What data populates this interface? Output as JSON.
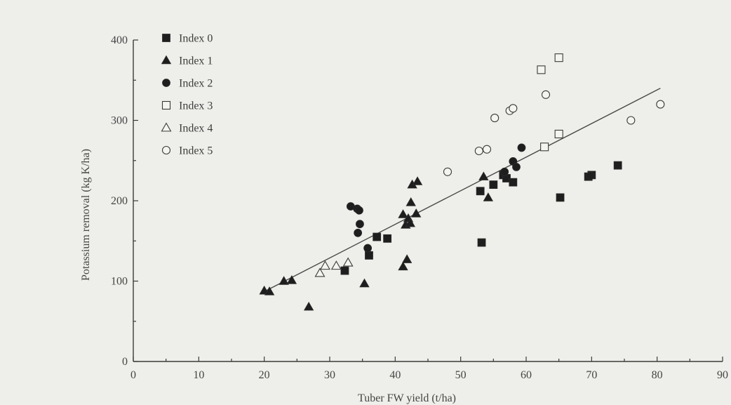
{
  "chart_data": {
    "type": "scatter",
    "xlabel": "Tuber FW yield (t/ha)",
    "ylabel": "Potassium removal (kg K/ha)",
    "xlim": [
      0,
      90
    ],
    "ylim": [
      0,
      400
    ],
    "xticks": [
      0,
      10,
      20,
      30,
      40,
      50,
      60,
      70,
      80,
      90
    ],
    "yticks": [
      0,
      100,
      200,
      300,
      400
    ],
    "legend_position": "top-left",
    "trendline": {
      "x": [
        20,
        80.5
      ],
      "y": [
        87,
        340
      ]
    },
    "series": [
      {
        "name": "Index 0",
        "marker": "square-filled",
        "points": [
          [
            32.3,
            113
          ],
          [
            36,
            132
          ],
          [
            37.2,
            155
          ],
          [
            38.8,
            153
          ],
          [
            53,
            212
          ],
          [
            53.2,
            148
          ],
          [
            55,
            220
          ],
          [
            56.5,
            232
          ],
          [
            57,
            228
          ],
          [
            58,
            223
          ],
          [
            65.2,
            204
          ],
          [
            69.5,
            230
          ],
          [
            70,
            232
          ],
          [
            74,
            244
          ]
        ]
      },
      {
        "name": "Index 1",
        "marker": "triangle-filled",
        "points": [
          [
            20,
            88
          ],
          [
            20.8,
            87
          ],
          [
            23,
            100
          ],
          [
            24.2,
            101
          ],
          [
            26.8,
            68
          ],
          [
            35.3,
            97
          ],
          [
            41.2,
            118
          ],
          [
            41.8,
            127
          ],
          [
            41.2,
            183
          ],
          [
            41.6,
            170
          ],
          [
            42,
            178
          ],
          [
            42.3,
            172
          ],
          [
            42.4,
            198
          ],
          [
            42.6,
            220
          ],
          [
            43.2,
            184
          ],
          [
            43.4,
            224
          ],
          [
            53.5,
            230
          ],
          [
            54.2,
            204
          ]
        ]
      },
      {
        "name": "Index 2",
        "marker": "circle-filled",
        "points": [
          [
            33.2,
            193
          ],
          [
            34.2,
            190
          ],
          [
            34.5,
            188
          ],
          [
            34.3,
            160
          ],
          [
            34.6,
            171
          ],
          [
            35.8,
            141
          ],
          [
            56.7,
            236
          ],
          [
            58,
            249
          ],
          [
            58.5,
            242
          ],
          [
            59.3,
            266
          ],
          [
            69.8,
            231
          ]
        ]
      },
      {
        "name": "Index 3",
        "marker": "square-open",
        "points": [
          [
            62.3,
            363
          ],
          [
            62.8,
            267
          ],
          [
            65,
            378
          ],
          [
            65,
            283
          ]
        ]
      },
      {
        "name": "Index 4",
        "marker": "triangle-open",
        "points": [
          [
            28.5,
            110
          ],
          [
            29.3,
            119
          ],
          [
            31,
            119
          ],
          [
            32.8,
            123
          ]
        ]
      },
      {
        "name": "Index 5",
        "marker": "circle-open",
        "points": [
          [
            48,
            236
          ],
          [
            52.8,
            262
          ],
          [
            54,
            264
          ],
          [
            55.2,
            303
          ],
          [
            57.5,
            312
          ],
          [
            58,
            315
          ],
          [
            63,
            332
          ],
          [
            76,
            300
          ],
          [
            80.5,
            320
          ]
        ]
      }
    ]
  }
}
